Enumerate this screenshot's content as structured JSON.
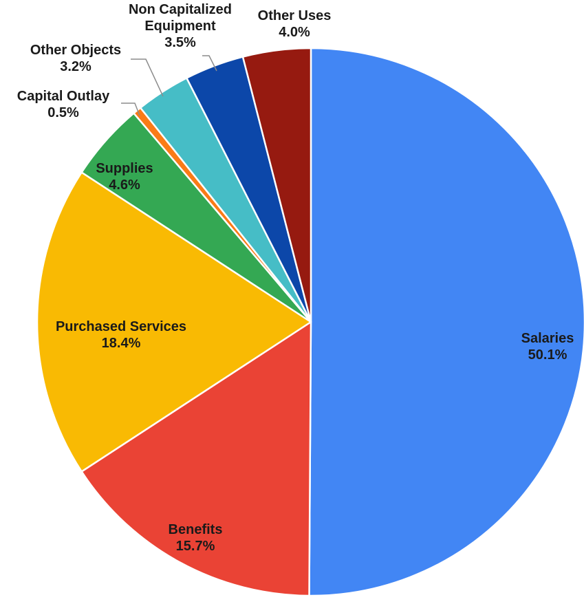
{
  "chart_data": {
    "type": "pie",
    "title": "",
    "slices": [
      {
        "label": "Salaries",
        "value": 50.1,
        "value_label": "50.1%",
        "color": "#4286F4"
      },
      {
        "label": "Benefits",
        "value": 15.7,
        "value_label": "15.7%",
        "color": "#EA4335"
      },
      {
        "label": "Purchased Services",
        "value": 18.4,
        "value_label": "18.4%",
        "color": "#F9BA03"
      },
      {
        "label": "Supplies",
        "value": 4.6,
        "value_label": "4.6%",
        "color": "#34A853"
      },
      {
        "label": "Capital Outlay",
        "value": 0.5,
        "value_label": "0.5%",
        "color": "#FA7B17"
      },
      {
        "label": "Other Objects",
        "value": 3.2,
        "value_label": "3.2%",
        "color": "#46BDC6"
      },
      {
        "label": "Non Capitalized Equipment",
        "value": 3.5,
        "value_label": "3.5%",
        "color": "#0C47A9"
      },
      {
        "label": "Other Uses",
        "value": 4.0,
        "value_label": "4.0%",
        "color": "#961A10"
      }
    ],
    "direction": "clockwise",
    "start_angle": "12 o'clock",
    "slice_border_color": "#ffffff",
    "legend": "none"
  }
}
